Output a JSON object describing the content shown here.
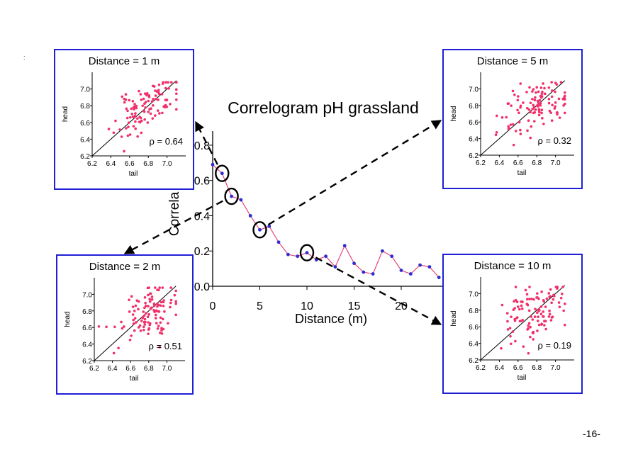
{
  "page_number": "-16-",
  "corner_mark": ":",
  "chart_data": [
    {
      "type": "line",
      "title": "Correlogram pH grassland",
      "xlabel": "Distance (m)",
      "ylabel": "Correla",
      "x_ticks": [
        "0",
        "5",
        "10",
        "15",
        "20"
      ],
      "y_ticks": [
        "0.0",
        "0.2",
        "0.4",
        "0.6",
        "0.8"
      ],
      "xlim": [
        0,
        24.5
      ],
      "ylim": [
        0,
        0.9
      ],
      "series": [
        {
          "x": [
            0,
            1,
            2,
            3,
            4,
            5,
            6,
            7,
            8,
            9,
            10,
            11,
            12,
            13,
            14,
            15,
            16,
            17,
            18,
            19,
            20,
            21,
            22,
            23,
            24
          ],
          "values": [
            0.69,
            0.64,
            0.51,
            0.49,
            0.4,
            0.32,
            0.34,
            0.25,
            0.18,
            0.17,
            0.19,
            0.15,
            0.17,
            0.11,
            0.23,
            0.13,
            0.08,
            0.07,
            0.2,
            0.17,
            0.09,
            0.07,
            0.12,
            0.11,
            0.05
          ]
        }
      ],
      "line_color": "#e8457a",
      "marker_color": "#2c2cd0",
      "highlighted_x": [
        1,
        2,
        5,
        10
      ]
    },
    {
      "type": "scatter",
      "title": "Distance = 1 m",
      "xlabel": "tail",
      "ylabel": "head",
      "x_ticks": [
        "6.2",
        "6.4",
        "6.6",
        "6.8",
        "7.0"
      ],
      "y_ticks": [
        "6.2",
        "6.4",
        "6.6",
        "6.8",
        "7.0"
      ],
      "xlim": [
        6.2,
        7.2
      ],
      "ylim": [
        6.2,
        7.2
      ],
      "annotation": "ρ =  0.64",
      "rho": 0.64
    },
    {
      "type": "scatter",
      "title": "Distance = 2 m",
      "xlabel": "tail",
      "ylabel": "head",
      "x_ticks": [
        "6.2",
        "6.4",
        "6.6",
        "6.8",
        "7.0"
      ],
      "y_ticks": [
        "6.2",
        "6.4",
        "6.6",
        "6.8",
        "7.0"
      ],
      "xlim": [
        6.2,
        7.2
      ],
      "ylim": [
        6.2,
        7.2
      ],
      "annotation": "ρ =  0.51",
      "rho": 0.51
    },
    {
      "type": "scatter",
      "title": "Distance = 5 m",
      "xlabel": "tail",
      "ylabel": "head",
      "x_ticks": [
        "6.2",
        "6.4",
        "6.6",
        "6.8",
        "7.0"
      ],
      "y_ticks": [
        "6.2",
        "6.4",
        "6.6",
        "6.8",
        "7.0"
      ],
      "xlim": [
        6.2,
        7.2
      ],
      "ylim": [
        6.2,
        7.2
      ],
      "annotation": "ρ =  0.32",
      "rho": 0.32
    },
    {
      "type": "scatter",
      "title": "Distance = 10 m",
      "xlabel": "tail",
      "ylabel": "head",
      "x_ticks": [
        "6.2",
        "6.4",
        "6.6",
        "6.8",
        "7.0"
      ],
      "y_ticks": [
        "6.2",
        "6.4",
        "6.6",
        "6.8",
        "7.0"
      ],
      "xlim": [
        6.2,
        7.2
      ],
      "ylim": [
        6.2,
        7.2
      ],
      "annotation": "ρ =  0.19",
      "rho": 0.19
    }
  ]
}
